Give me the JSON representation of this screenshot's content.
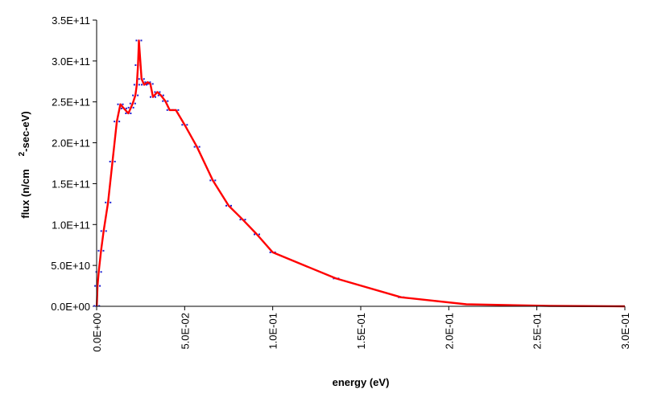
{
  "chart_data": {
    "type": "line",
    "title": "",
    "xlabel": "energy (eV)",
    "ylabel": "flux (n/cm",
    "ylabel_sup": "2",
    "ylabel_tail": "-sec-eV)",
    "xlim": [
      0,
      0.3
    ],
    "ylim": [
      0,
      350000000000
    ],
    "x_ticks": [
      "0.0E+00",
      "5.0E-02",
      "1.0E-01",
      "1.5E-01",
      "2.0E-01",
      "2.5E-01",
      "3.0E-01"
    ],
    "y_ticks": [
      "0.0E+00",
      "5.0E+10",
      "1.0E+11",
      "1.5E+11",
      "2.0E+11",
      "2.5E+11",
      "3.0E+11",
      "3.5E+11"
    ],
    "grid": false,
    "legend": "none",
    "colors": {
      "line": "#ff0000",
      "marker": "#1f1fd0",
      "axis": "#000000"
    },
    "series": [
      {
        "x": [
          0.0001,
          0.0005,
          0.0012,
          0.0025,
          0.004,
          0.0065,
          0.009,
          0.0115,
          0.0135,
          0.0155,
          0.018,
          0.0195,
          0.0205,
          0.022,
          0.0228,
          0.0235,
          0.024,
          0.0255,
          0.027,
          0.029,
          0.0305,
          0.032,
          0.0345,
          0.0365,
          0.039,
          0.0415,
          0.045,
          0.05,
          0.057,
          0.066,
          0.075,
          0.083,
          0.091,
          0.1,
          0.136,
          0.173,
          0.21,
          0.257,
          0.3
        ],
        "y": [
          500000000,
          25000000000,
          42000000000,
          68000000000,
          92000000000,
          127000000000,
          177000000000,
          226000000000,
          247000000000,
          242000000000,
          236000000000,
          243000000000,
          248000000000,
          258000000000,
          271000000000,
          295000000000,
          325000000000,
          278000000000,
          271000000000,
          274000000000,
          272000000000,
          256000000000,
          262000000000,
          258000000000,
          251000000000,
          240000000000,
          240000000000,
          222000000000,
          195000000000,
          154000000000,
          123000000000,
          106000000000,
          88000000000,
          66000000000,
          34000000000,
          11000000000,
          2500000000,
          500000000,
          0
        ]
      }
    ]
  }
}
